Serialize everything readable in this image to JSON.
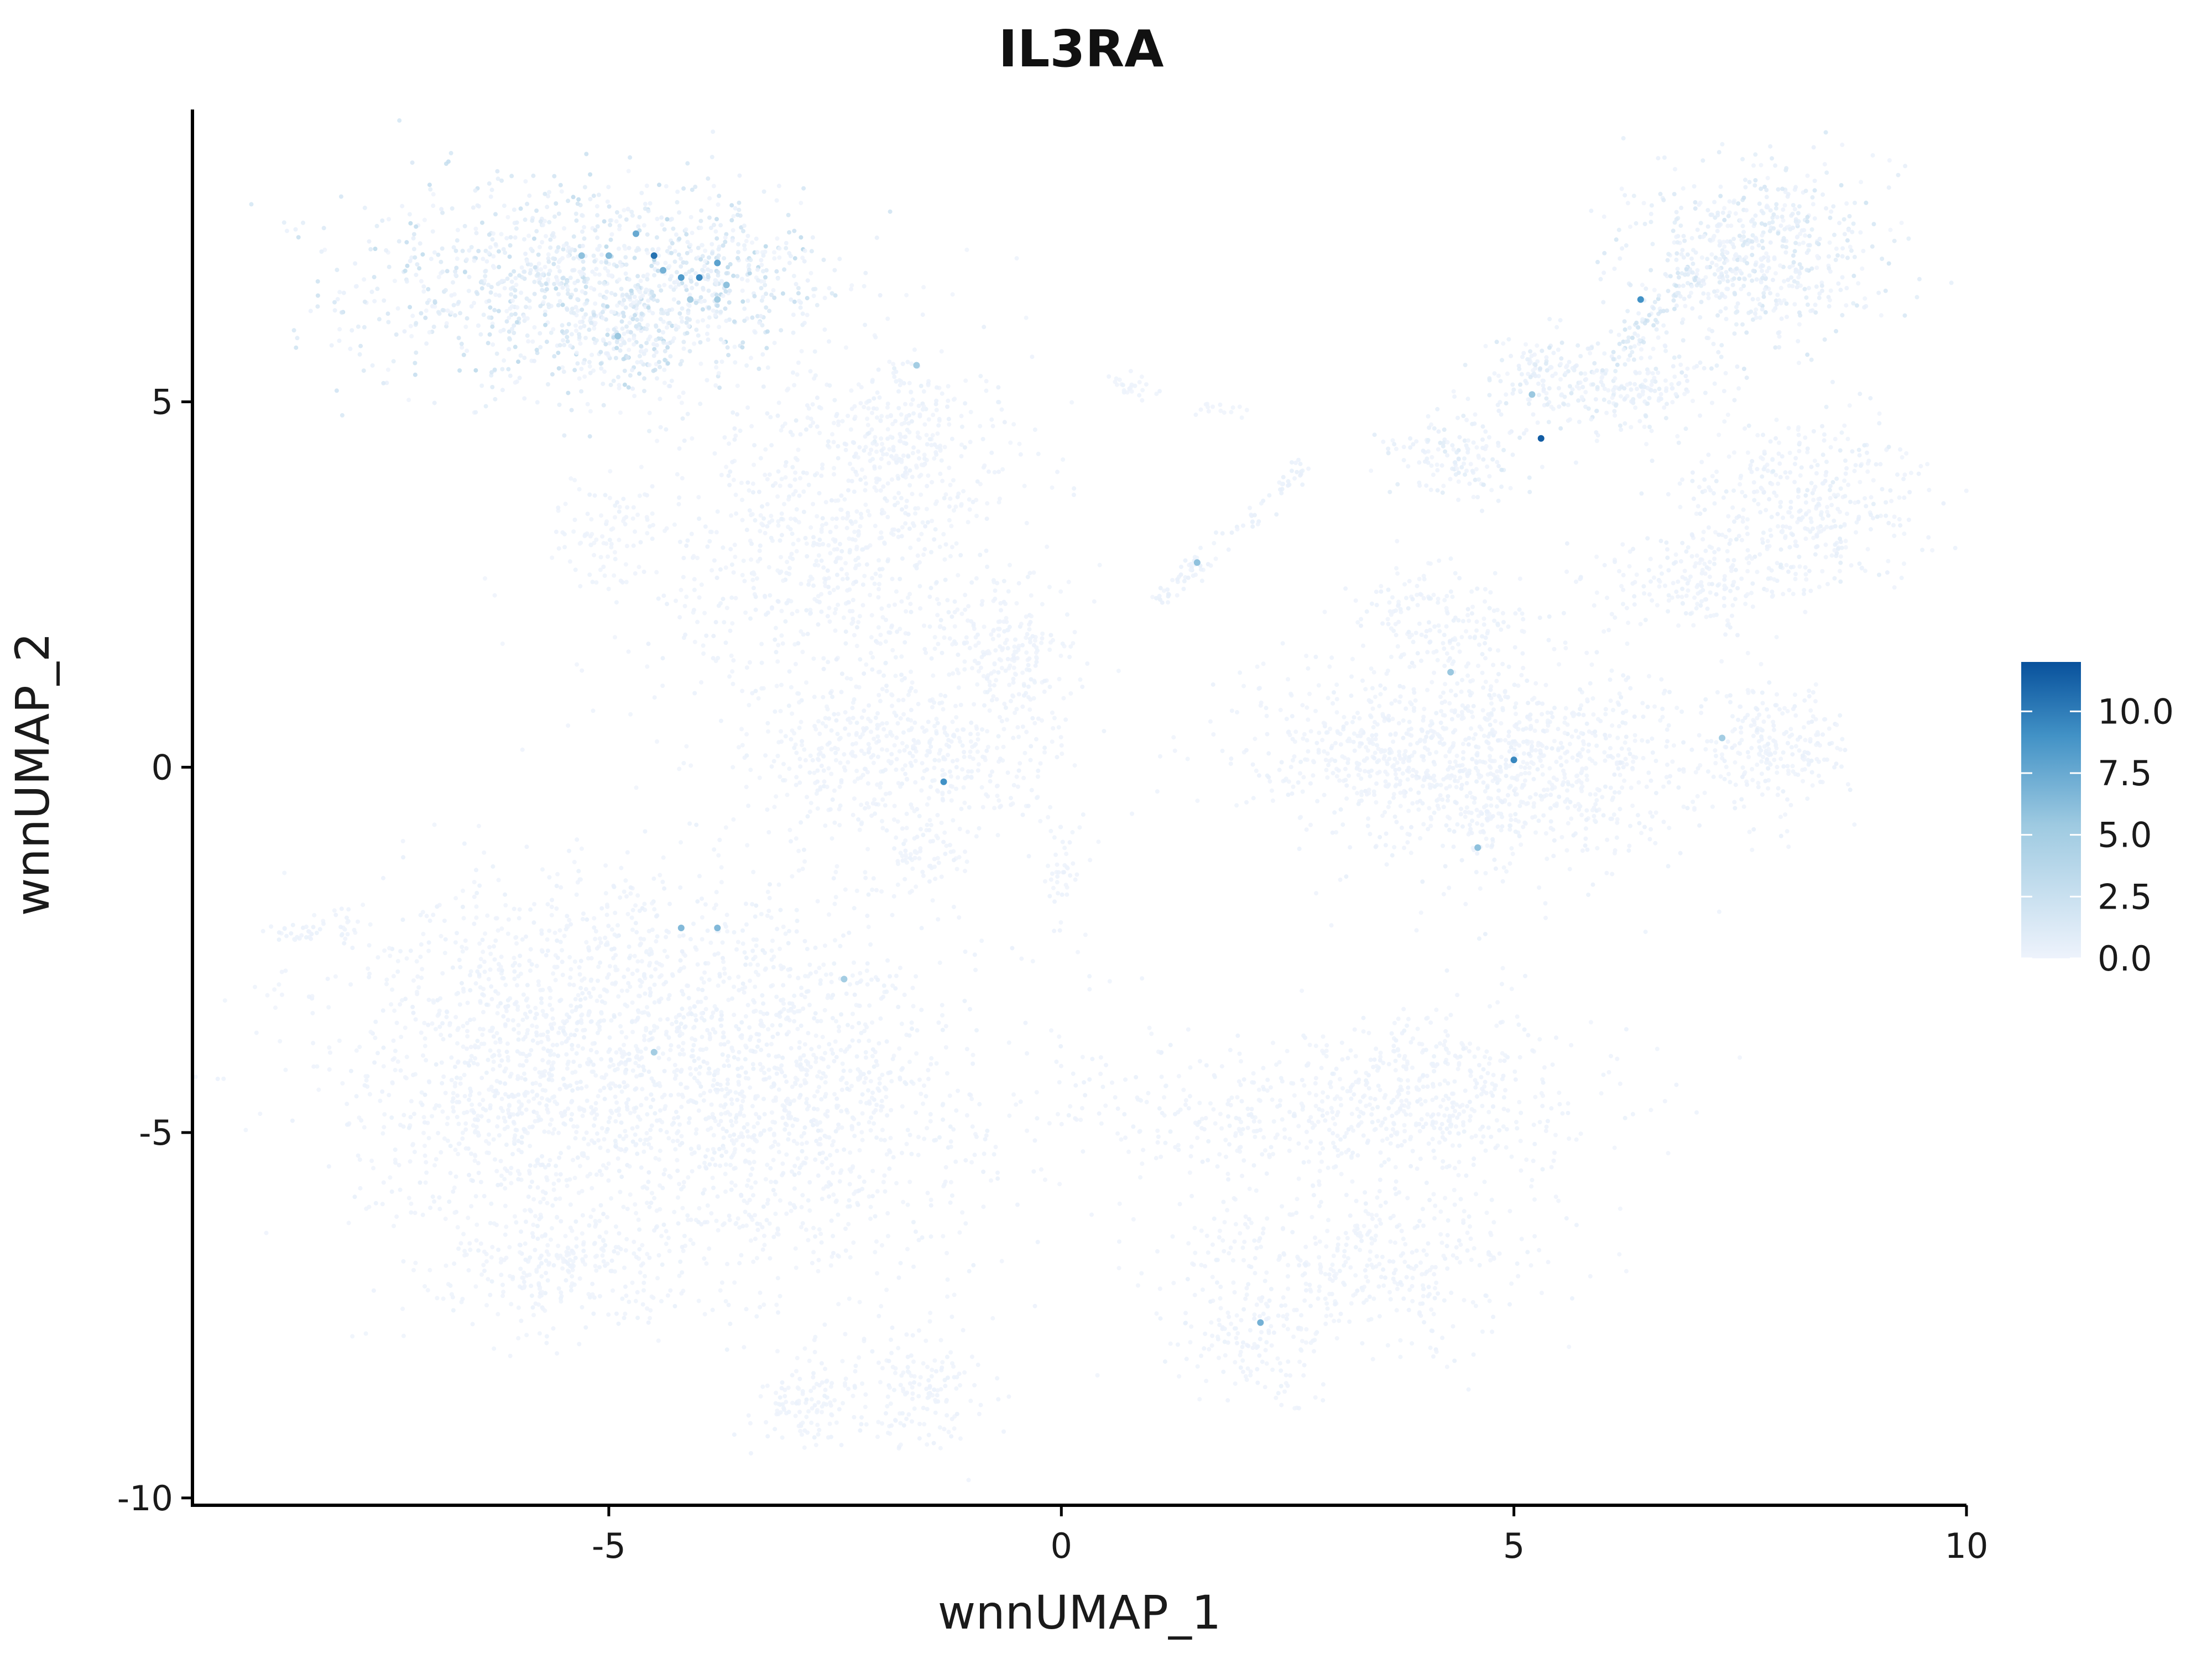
{
  "chart_data": {
    "type": "scatter",
    "title": "IL3RA",
    "xlabel": "wnnUMAP_1",
    "ylabel": "wnnUMAP_2",
    "xlim": [
      -9.6,
      10.0
    ],
    "ylim": [
      -10.1,
      9.0
    ],
    "x_ticks": [
      -5,
      0,
      5,
      10
    ],
    "x_tick_labels": [
      "-5",
      "0",
      "5",
      "10"
    ],
    "y_ticks": [
      5,
      0,
      -5,
      -10
    ],
    "y_tick_labels": [
      "5",
      "0",
      "-5",
      "-10"
    ],
    "grid": false,
    "legend_position": "right",
    "color_scale": {
      "low_color": "#eef3fc",
      "mid_color": "#6baed6",
      "high_color": "#08519c",
      "min": 0,
      "max": 12,
      "ticks": [
        0,
        2.5,
        5,
        7.5,
        10
      ],
      "tick_labels": [
        "0.0",
        "2.5",
        "5.0",
        "7.5",
        "10.0"
      ]
    },
    "clusters": [
      {
        "cx": -5.5,
        "cy": 6.6,
        "sx": 1.2,
        "sy": 0.75,
        "n": 1000,
        "expr": 2.0
      },
      {
        "cx": -3.6,
        "cy": 6.8,
        "sx": 0.5,
        "sy": 0.45,
        "n": 220,
        "expr": 2.5
      },
      {
        "cx": -4.7,
        "cy": 6.0,
        "sx": 0.3,
        "sy": 0.4,
        "n": 150,
        "expr": 2.2
      },
      {
        "cx": -2.5,
        "cy": 3.0,
        "sx": 1.1,
        "sy": 1.4,
        "n": 950,
        "expr": 0.3
      },
      {
        "cx": -1.6,
        "cy": 4.5,
        "sx": 0.5,
        "sy": 0.5,
        "n": 200,
        "expr": 0.4
      },
      {
        "cx": -1.7,
        "cy": 0.2,
        "sx": 0.9,
        "sy": 0.6,
        "n": 500,
        "expr": 0.2
      },
      {
        "cx": -0.6,
        "cy": 1.5,
        "sx": 0.35,
        "sy": 0.35,
        "n": 170,
        "expr": 0.2
      },
      {
        "cx": -1.5,
        "cy": -1.2,
        "sx": 0.2,
        "sy": 0.25,
        "n": 60,
        "expr": 0.2
      },
      {
        "cx": 0.0,
        "cy": -1.4,
        "sx": 0.12,
        "sy": 0.35,
        "n": 40,
        "expr": 0.2
      },
      {
        "cx": -5.1,
        "cy": 3.2,
        "sx": 0.35,
        "sy": 0.4,
        "n": 80,
        "expr": 0.2
      },
      {
        "cx": -4.5,
        "cy": -3.8,
        "sx": 1.7,
        "sy": 1.3,
        "n": 1700,
        "expr": 0.3
      },
      {
        "cx": -6.2,
        "cy": -4.5,
        "sx": 0.8,
        "sy": 1.2,
        "n": 500,
        "expr": 0.2
      },
      {
        "cx": -2.9,
        "cy": -5.0,
        "sx": 1.0,
        "sy": 1.2,
        "n": 600,
        "expr": 0.2
      },
      {
        "cx": -5.5,
        "cy": -6.8,
        "sx": 0.7,
        "sy": 0.35,
        "n": 250,
        "expr": 0.2
      },
      {
        "cx": -2.8,
        "cy": -8.7,
        "sx": 0.4,
        "sy": 0.3,
        "n": 120,
        "expr": 0.2
      },
      {
        "cx": -1.5,
        "cy": -8.5,
        "sx": 0.35,
        "sy": 0.45,
        "n": 150,
        "expr": 0.2
      },
      {
        "cx": 3.0,
        "cy": -4.7,
        "sx": 1.5,
        "sy": 0.5,
        "n": 550,
        "expr": 0.2
      },
      {
        "cx": 3.2,
        "cy": -6.8,
        "sx": 1.1,
        "sy": 0.55,
        "n": 450,
        "expr": 0.2
      },
      {
        "cx": 2.2,
        "cy": -7.9,
        "sx": 0.4,
        "sy": 0.35,
        "n": 130,
        "expr": 0.2
      },
      {
        "cx": 4.2,
        "cy": -4.3,
        "sx": 0.6,
        "sy": 0.6,
        "n": 200,
        "expr": 0.2
      },
      {
        "cx": 5.0,
        "cy": 0.0,
        "sx": 1.1,
        "sy": 0.75,
        "n": 900,
        "expr": 0.3
      },
      {
        "cx": 3.5,
        "cy": 0.3,
        "sx": 0.9,
        "sy": 0.5,
        "n": 350,
        "expr": 0.2
      },
      {
        "cx": 7.9,
        "cy": 0.3,
        "sx": 0.35,
        "sy": 0.4,
        "n": 220,
        "expr": 0.3
      },
      {
        "cx": 7.1,
        "cy": 2.5,
        "sx": 0.6,
        "sy": 0.35,
        "n": 200,
        "expr": 0.3
      },
      {
        "cx": 8.2,
        "cy": 3.6,
        "sx": 0.7,
        "sy": 0.6,
        "n": 400,
        "expr": 0.5
      },
      {
        "cx": 7.7,
        "cy": 7.0,
        "sx": 0.7,
        "sy": 0.6,
        "n": 600,
        "expr": 1.2
      },
      {
        "cx": 5.3,
        "cy": 5.4,
        "sx": 0.3,
        "sy": 0.3,
        "n": 130,
        "expr": 1.0
      },
      {
        "cx": 4.3,
        "cy": 4.2,
        "sx": 0.4,
        "sy": 0.3,
        "n": 140,
        "expr": 0.8
      },
      {
        "cx": 6.3,
        "cy": 5.2,
        "sx": 0.5,
        "sy": 0.35,
        "n": 200,
        "expr": 0.7
      },
      {
        "cx": 4.2,
        "cy": 2.0,
        "sx": 0.5,
        "sy": 0.4,
        "n": 180,
        "expr": 0.3
      },
      {
        "cx": 0.8,
        "cy": 5.2,
        "sx": 0.15,
        "sy": 0.1,
        "n": 25,
        "expr": 0.2
      },
      {
        "cx": 1.7,
        "cy": 4.9,
        "sx": 0.15,
        "sy": 0.05,
        "n": 15,
        "expr": 0.2
      }
    ],
    "bridges": [
      {
        "x1": -8.7,
        "y1": -2.3,
        "x2": -7.7,
        "y2": -2.1,
        "n": 40,
        "expr": 0.2
      },
      {
        "x1": 1.0,
        "y1": 2.2,
        "x2": 2.8,
        "y2": 4.2,
        "n": 90,
        "expr": 0.3
      },
      {
        "x1": 6.0,
        "y1": 5.5,
        "x2": 7.0,
        "y2": 6.8,
        "n": 70,
        "expr": 1.2
      }
    ],
    "highlight_points": [
      {
        "x": -4.5,
        "y": 7.0,
        "value": 10.5
      },
      {
        "x": -4.7,
        "y": 7.3,
        "value": 7.5
      },
      {
        "x": -4.2,
        "y": 6.7,
        "value": 8.5
      },
      {
        "x": -4.0,
        "y": 6.7,
        "value": 9.5
      },
      {
        "x": -3.8,
        "y": 6.9,
        "value": 8.0
      },
      {
        "x": -4.4,
        "y": 6.8,
        "value": 7.0
      },
      {
        "x": -3.7,
        "y": 6.6,
        "value": 6.0
      },
      {
        "x": -5.0,
        "y": 7.0,
        "value": 6.5
      },
      {
        "x": -5.3,
        "y": 7.0,
        "value": 6.0
      },
      {
        "x": -4.9,
        "y": 5.9,
        "value": 5.5
      },
      {
        "x": -4.1,
        "y": 6.4,
        "value": 5.0
      },
      {
        "x": -3.8,
        "y": 6.4,
        "value": 5.0
      },
      {
        "x": 5.3,
        "y": 4.5,
        "value": 11.5
      },
      {
        "x": 6.4,
        "y": 6.4,
        "value": 9.0
      },
      {
        "x": 5.2,
        "y": 5.1,
        "value": 5.5
      },
      {
        "x": -1.3,
        "y": -0.2,
        "value": 9.0
      },
      {
        "x": 5.0,
        "y": 0.1,
        "value": 9.5
      },
      {
        "x": 2.2,
        "y": -7.6,
        "value": 7.0
      },
      {
        "x": -4.2,
        "y": -2.2,
        "value": 6.5
      },
      {
        "x": -3.8,
        "y": -2.2,
        "value": 6.5
      },
      {
        "x": -2.4,
        "y": -2.9,
        "value": 5.0
      },
      {
        "x": -4.5,
        "y": -3.9,
        "value": 5.0
      },
      {
        "x": 1.5,
        "y": 2.8,
        "value": 6.0
      },
      {
        "x": 4.3,
        "y": 1.3,
        "value": 5.5
      },
      {
        "x": 7.3,
        "y": 0.4,
        "value": 5.0
      },
      {
        "x": 4.6,
        "y": -1.1,
        "value": 6.0
      },
      {
        "x": -1.6,
        "y": 5.5,
        "value": 5.0
      }
    ]
  }
}
